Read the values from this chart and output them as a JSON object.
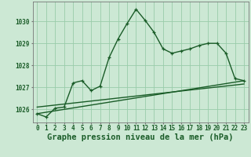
{
  "background_color": "#cce8d4",
  "grid_color": "#99ccaa",
  "line_color": "#1a5c28",
  "title": "Graphe pression niveau de la mer (hPa)",
  "xlim": [
    -0.5,
    23.5
  ],
  "ylim": [
    1025.4,
    1030.9
  ],
  "yticks": [
    1026,
    1027,
    1028,
    1029,
    1030
  ],
  "xticks": [
    0,
    1,
    2,
    3,
    4,
    5,
    6,
    7,
    8,
    9,
    10,
    11,
    12,
    13,
    14,
    15,
    16,
    17,
    18,
    19,
    20,
    21,
    22,
    23
  ],
  "series1_x": [
    0,
    1,
    2,
    3,
    4,
    5,
    6,
    7,
    8,
    9,
    10,
    11,
    12,
    13,
    14,
    15,
    16,
    17,
    18,
    19,
    20,
    21,
    22,
    23
  ],
  "series1_y": [
    1025.8,
    1025.65,
    1026.05,
    1026.1,
    1027.2,
    1027.3,
    1026.85,
    1027.05,
    1028.35,
    1029.2,
    1029.9,
    1030.55,
    1030.05,
    1029.5,
    1028.75,
    1028.55,
    1028.65,
    1028.75,
    1028.9,
    1029.0,
    1029.0,
    1028.55,
    1027.4,
    1027.3
  ],
  "series2_x": [
    0,
    23
  ],
  "series2_y": [
    1025.8,
    1027.3
  ],
  "series3_x": [
    0,
    23
  ],
  "series3_y": [
    1026.1,
    1027.15
  ],
  "title_fontsize": 7.5,
  "tick_fontsize": 5.5
}
